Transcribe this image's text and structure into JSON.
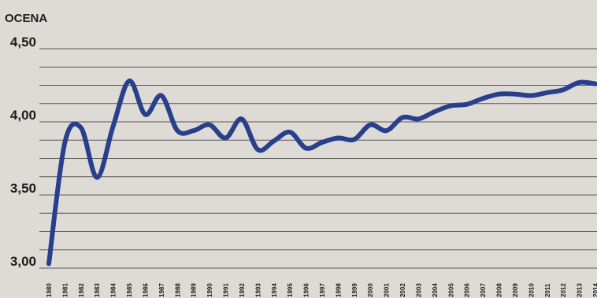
{
  "chart_data": {
    "type": "line",
    "title": "",
    "xlabel": "",
    "ylabel": "OCENA",
    "ylim": [
      3.0,
      4.5
    ],
    "yticks": [
      {
        "value": 3.0,
        "label": "3,00"
      },
      {
        "value": 3.5,
        "label": "3,50"
      },
      {
        "value": 4.0,
        "label": "4,00"
      },
      {
        "value": 4.5,
        "label": "4,50"
      }
    ],
    "grid_step": 0.125,
    "grid": true,
    "legend": "none",
    "line_color": "#283f8c",
    "x": [
      1980,
      1981,
      1982,
      1983,
      1984,
      1985,
      1986,
      1987,
      1988,
      1989,
      1990,
      1991,
      1992,
      1993,
      1994,
      1995,
      1996,
      1997,
      1998,
      1999,
      2000,
      2001,
      2002,
      2003,
      2004,
      2005,
      2006,
      2007,
      2008,
      2009,
      2010,
      2011,
      2012,
      2013,
      2014
    ],
    "series": [
      {
        "values": [
          3.03,
          3.86,
          3.96,
          3.62,
          3.97,
          4.28,
          4.05,
          4.18,
          3.94,
          3.94,
          3.98,
          3.89,
          4.02,
          3.81,
          3.87,
          3.93,
          3.82,
          3.86,
          3.89,
          3.88,
          3.98,
          3.94,
          4.03,
          4.02,
          4.07,
          4.11,
          4.12,
          4.16,
          4.19,
          4.19,
          4.18,
          4.2,
          4.22,
          4.27,
          4.26
        ]
      }
    ]
  }
}
